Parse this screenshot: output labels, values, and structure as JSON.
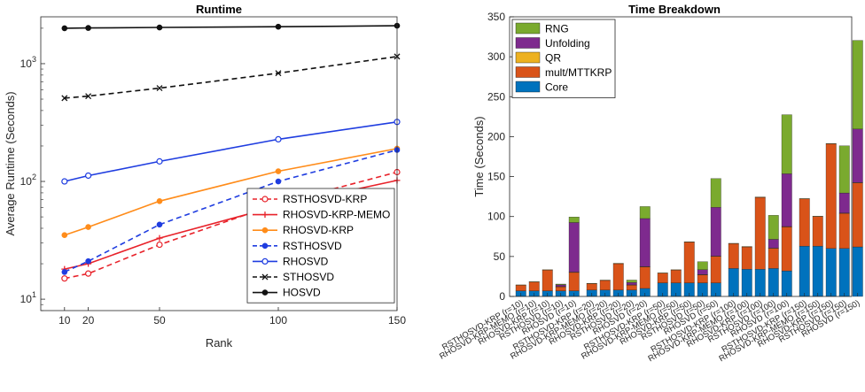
{
  "chart_data": [
    {
      "type": "line",
      "title": "Runtime",
      "xlabel": "Rank",
      "ylabel": "Average Runtime (Seconds)",
      "yscale": "log",
      "x": [
        10,
        20,
        50,
        100,
        150
      ],
      "xlim": [
        0,
        150
      ],
      "xticks": [
        10,
        20,
        50,
        100,
        150
      ],
      "ylim": [
        8,
        2500
      ],
      "yticks": [
        10,
        100,
        1000
      ],
      "ytick_labels": [
        {
          "base": "10",
          "exp": "1"
        },
        {
          "base": "10",
          "exp": "2"
        },
        {
          "base": "10",
          "exp": "3"
        }
      ],
      "legend_position": "bottom-right",
      "series": [
        {
          "name": "RSTHOSVD-KRP",
          "color": "#e8222a",
          "dash": "dashed",
          "marker": "circle",
          "values": [
            15,
            16.5,
            29,
            65,
            120
          ]
        },
        {
          "name": "RHOSVD-KRP-MEMO",
          "color": "#e8222a",
          "dash": "solid",
          "marker": "plus",
          "values": [
            18,
            20,
            33,
            62,
            102
          ]
        },
        {
          "name": "RHOSVD-KRP",
          "color": "#ff8c1a",
          "dash": "solid",
          "marker": "circle-filled",
          "values": [
            35,
            41,
            68,
            122,
            190
          ]
        },
        {
          "name": "RSTHOSVD",
          "color": "#1f3de0",
          "dash": "dashed",
          "marker": "circle-filled",
          "values": [
            17,
            21,
            43,
            100,
            185
          ]
        },
        {
          "name": "RHOSVD",
          "color": "#1f3de0",
          "dash": "solid",
          "marker": "circle",
          "values": [
            100,
            112,
            148,
            228,
            320
          ]
        },
        {
          "name": "STHOSVD",
          "color": "#111111",
          "dash": "dashed",
          "marker": "x",
          "values": [
            510,
            530,
            620,
            830,
            1150
          ]
        },
        {
          "name": "HOSVD",
          "color": "#111111",
          "dash": "solid",
          "marker": "circle-filled",
          "values": [
            2000,
            2010,
            2030,
            2060,
            2100
          ]
        }
      ]
    },
    {
      "type": "bar",
      "stacked": true,
      "title": "Time Breakdown",
      "xlabel": "",
      "ylabel": "Time (Seconds)",
      "ylim": [
        0,
        350
      ],
      "yticks": [
        0,
        50,
        100,
        150,
        200,
        250,
        300,
        350
      ],
      "legend_position": "top-left",
      "stack_order": [
        "Core",
        "mult/MTTKRP",
        "QR",
        "Unfolding",
        "RNG"
      ],
      "legend": [
        {
          "name": "RNG",
          "color": "#7aaa2e"
        },
        {
          "name": "Unfolding",
          "color": "#7e2a8e"
        },
        {
          "name": "QR",
          "color": "#edb120"
        },
        {
          "name": "mult/MTTKRP",
          "color": "#d95319"
        },
        {
          "name": "Core",
          "color": "#0072bd"
        }
      ],
      "groups": [
        {
          "rank": "r=10",
          "bars": [
            {
              "label": "RSTHOSVD-KRP (r=10)",
              "Core": 7,
              "mult/MTTKRP": 7,
              "QR": 0.5,
              "Unfolding": 0,
              "RNG": 0
            },
            {
              "label": "RHOSVD-KRP-MEMO (r=10)",
              "Core": 7,
              "mult/MTTKRP": 11,
              "QR": 0.5,
              "Unfolding": 0,
              "RNG": 0
            },
            {
              "label": "RHOSVD-KRP (r=10)",
              "Core": 7,
              "mult/MTTKRP": 26,
              "QR": 0.5,
              "Unfolding": 0,
              "RNG": 0
            },
            {
              "label": "RSTHOSVD (r=10)",
              "Core": 7,
              "mult/MTTKRP": 5,
              "QR": 0.5,
              "Unfolding": 2,
              "RNG": 1
            },
            {
              "label": "RHOSVD (r=10)",
              "Core": 7,
              "mult/MTTKRP": 23,
              "QR": 0.5,
              "Unfolding": 62,
              "RNG": 7
            }
          ]
        },
        {
          "rank": "r=20",
          "bars": [
            {
              "label": "RSTHOSVD-KRP (r=20)",
              "Core": 8,
              "mult/MTTKRP": 8,
              "QR": 0.5,
              "Unfolding": 0,
              "RNG": 0
            },
            {
              "label": "RHOSVD-KRP-MEMO (r=20)",
              "Core": 8,
              "mult/MTTKRP": 12,
              "QR": 0.5,
              "Unfolding": 0,
              "RNG": 0
            },
            {
              "label": "RHOSVD-KRP (r=20)",
              "Core": 8,
              "mult/MTTKRP": 33,
              "QR": 0.5,
              "Unfolding": 0,
              "RNG": 0
            },
            {
              "label": "RSTHOSVD (r=20)",
              "Core": 8,
              "mult/MTTKRP": 6,
              "QR": 0.5,
              "Unfolding": 3,
              "RNG": 3
            },
            {
              "label": "RHOSVD (r=20)",
              "Core": 10,
              "mult/MTTKRP": 27,
              "QR": 0.5,
              "Unfolding": 60,
              "RNG": 15
            }
          ]
        },
        {
          "rank": "r=50",
          "bars": [
            {
              "label": "RSTHOSVD-KRP (r=50)",
              "Core": 17,
              "mult/MTTKRP": 12,
              "QR": 0.5,
              "Unfolding": 0,
              "RNG": 0
            },
            {
              "label": "RHOSVD-KRP-MEMO (r=50)",
              "Core": 17,
              "mult/MTTKRP": 16,
              "QR": 0.5,
              "Unfolding": 0,
              "RNG": 0
            },
            {
              "label": "RHOSVD-KRP (r=50)",
              "Core": 17,
              "mult/MTTKRP": 51,
              "QR": 0.5,
              "Unfolding": 0,
              "RNG": 0
            },
            {
              "label": "RSTHOSVD (r=50)",
              "Core": 17,
              "mult/MTTKRP": 10,
              "QR": 0.5,
              "Unfolding": 6,
              "RNG": 10
            },
            {
              "label": "RHOSVD (r=50)",
              "Core": 17,
              "mult/MTTKRP": 33,
              "QR": 0.5,
              "Unfolding": 61,
              "RNG": 36
            }
          ]
        },
        {
          "rank": "r=100",
          "bars": [
            {
              "label": "RSTHOSVD-KRP (r=100)",
              "Core": 35,
              "mult/MTTKRP": 31,
              "QR": 0.5,
              "Unfolding": 0,
              "RNG": 0
            },
            {
              "label": "RHOSVD-KRP-MEMO (r=100)",
              "Core": 34,
              "mult/MTTKRP": 28,
              "QR": 0.5,
              "Unfolding": 0,
              "RNG": 0
            },
            {
              "label": "RHOSVD-KRP (r=100)",
              "Core": 34,
              "mult/MTTKRP": 90,
              "QR": 0.5,
              "Unfolding": 0,
              "RNG": 0
            },
            {
              "label": "RSTHOSVD (r=100)",
              "Core": 35,
              "mult/MTTKRP": 25,
              "QR": 0.5,
              "Unfolding": 11,
              "RNG": 30
            },
            {
              "label": "RHOSVD (r=100)",
              "Core": 32,
              "mult/MTTKRP": 55,
              "QR": 0.5,
              "Unfolding": 66,
              "RNG": 74
            }
          ]
        },
        {
          "rank": "r=150",
          "bars": [
            {
              "label": "RSTHOSVD-KRP (r=150)",
              "Core": 63,
              "mult/MTTKRP": 59,
              "QR": 0.5,
              "Unfolding": 0,
              "RNG": 0
            },
            {
              "label": "RHOSVD-KRP-MEMO (r=150)",
              "Core": 63,
              "mult/MTTKRP": 37,
              "QR": 0.5,
              "Unfolding": 0,
              "RNG": 0
            },
            {
              "label": "RHOSVD-KRP (r=150)",
              "Core": 60,
              "mult/MTTKRP": 131,
              "QR": 0.5,
              "Unfolding": 0,
              "RNG": 0
            },
            {
              "label": "RSTHOSVD (r=150)",
              "Core": 60,
              "mult/MTTKRP": 44,
              "QR": 0.5,
              "Unfolding": 25,
              "RNG": 59
            },
            {
              "label": "RHOSVD (r=150)",
              "Core": 62,
              "mult/MTTKRP": 80,
              "QR": 0.5,
              "Unfolding": 67,
              "RNG": 111
            }
          ]
        }
      ]
    }
  ]
}
